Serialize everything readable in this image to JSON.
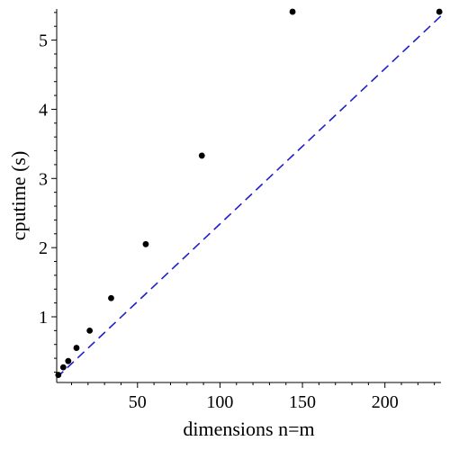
{
  "chart_data": {
    "type": "scatter",
    "title": "",
    "xlabel": "dimensions n=m",
    "ylabel": "cputime (s)",
    "xlim": [
      1,
      234
    ],
    "ylim": [
      0.05,
      5.45
    ],
    "xticks": [
      50,
      100,
      150,
      200
    ],
    "yticks": [
      1,
      2,
      3,
      4,
      5
    ],
    "grid": false,
    "legend": "none",
    "series": [
      {
        "marker": "circle",
        "color": "#000000",
        "x": [
          2,
          5,
          8,
          13,
          21,
          34,
          55,
          89,
          144,
          233
        ],
        "y": [
          0.16,
          0.27,
          0.36,
          0.55,
          0.8,
          1.27,
          2.05,
          3.33,
          5.41,
          5.41
        ]
      }
    ],
    "fit_line": {
      "style": "dashed",
      "color": "#1f1fcc",
      "x": [
        1,
        234
      ],
      "y": [
        0.12,
        5.35
      ]
    }
  }
}
